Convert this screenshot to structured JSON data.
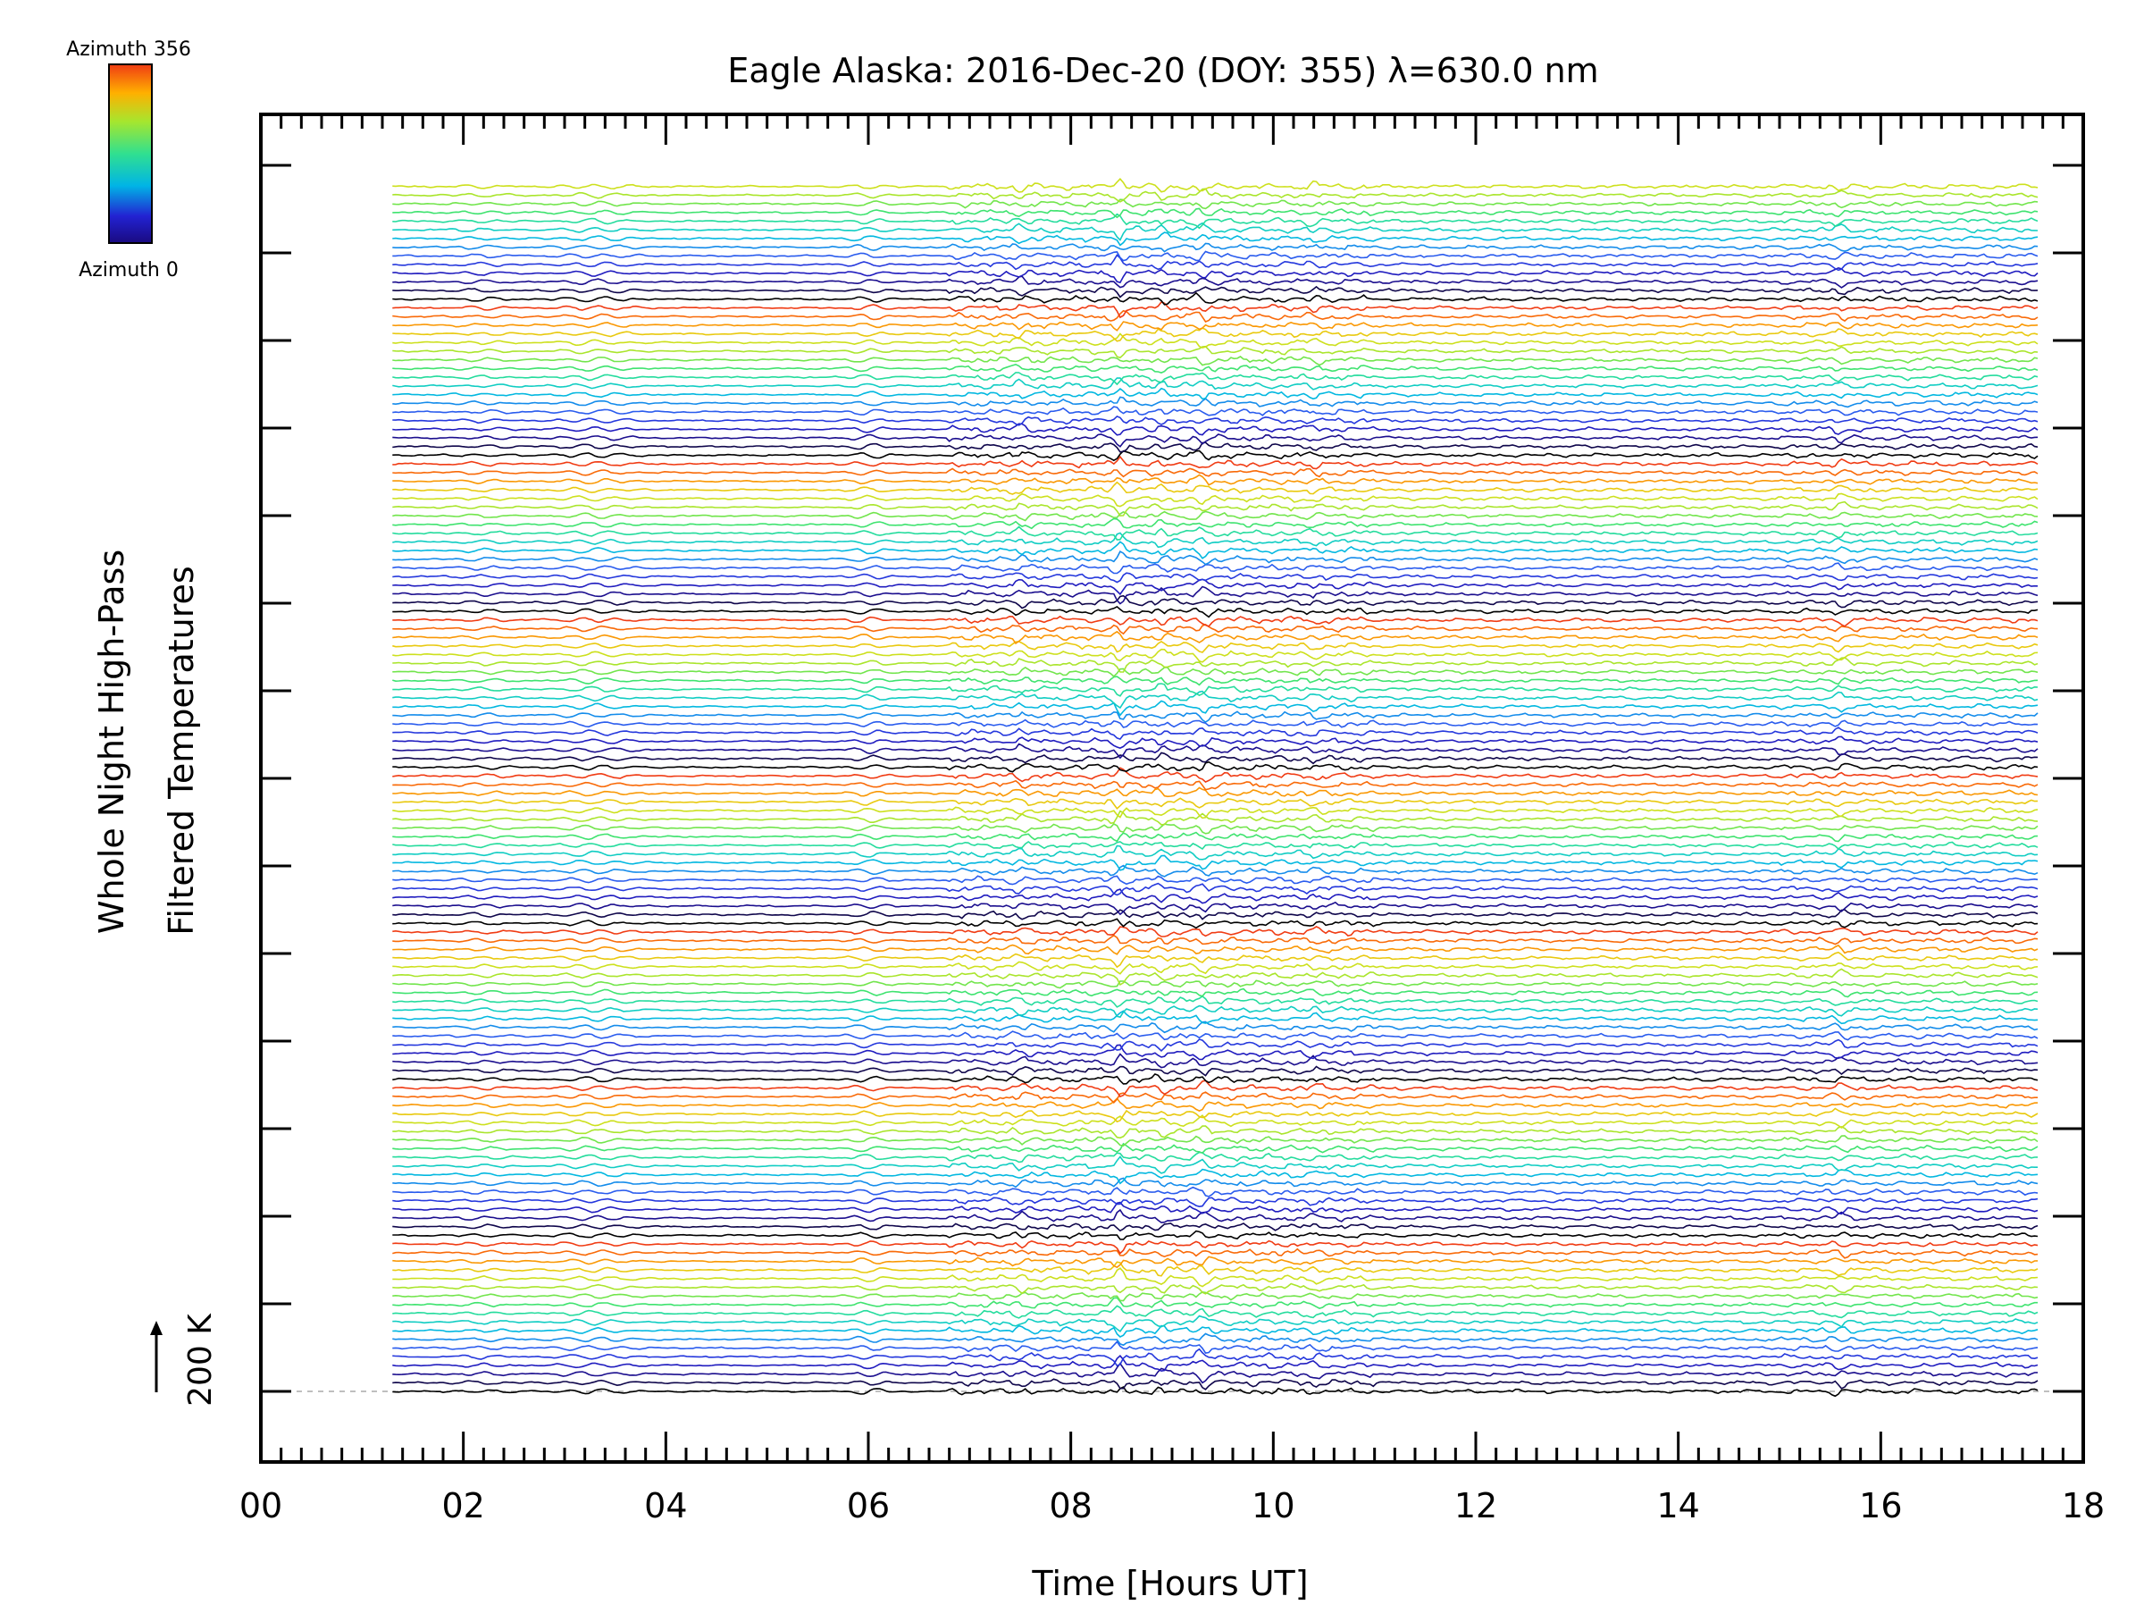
{
  "chart_data": {
    "type": "line",
    "title": "Eagle Alaska: 2016-Dec-20 (DOY: 355) λ=630.0 nm",
    "xlabel": "Time [Hours UT]",
    "ylabel": [
      "Whole Night High-Pass",
      "Filtered Temperatures"
    ],
    "scale_label": "200 K",
    "xlim": [
      0,
      18
    ],
    "x_tick_labels": [
      "00",
      "02",
      "04",
      "06",
      "08",
      "10",
      "12",
      "14",
      "16",
      "18"
    ],
    "colorbar": {
      "top_label": "Azimuth 356",
      "bottom_label": "Azimuth 0",
      "colormap": "rainbow"
    },
    "series_count": 140,
    "cycle_length": 18,
    "time_range": [
      1.3,
      17.55
    ],
    "colors": {
      "ramp": [
        "#000000",
        "#1a0a80",
        "#2222d2",
        "#2a60f0",
        "#00b4e6",
        "#18d8b4",
        "#44e466",
        "#a6e62e",
        "#e2dc14",
        "#ff8a00",
        "#f03c14"
      ],
      "frame": "#000000",
      "baseline": "#aaaaaa"
    }
  }
}
